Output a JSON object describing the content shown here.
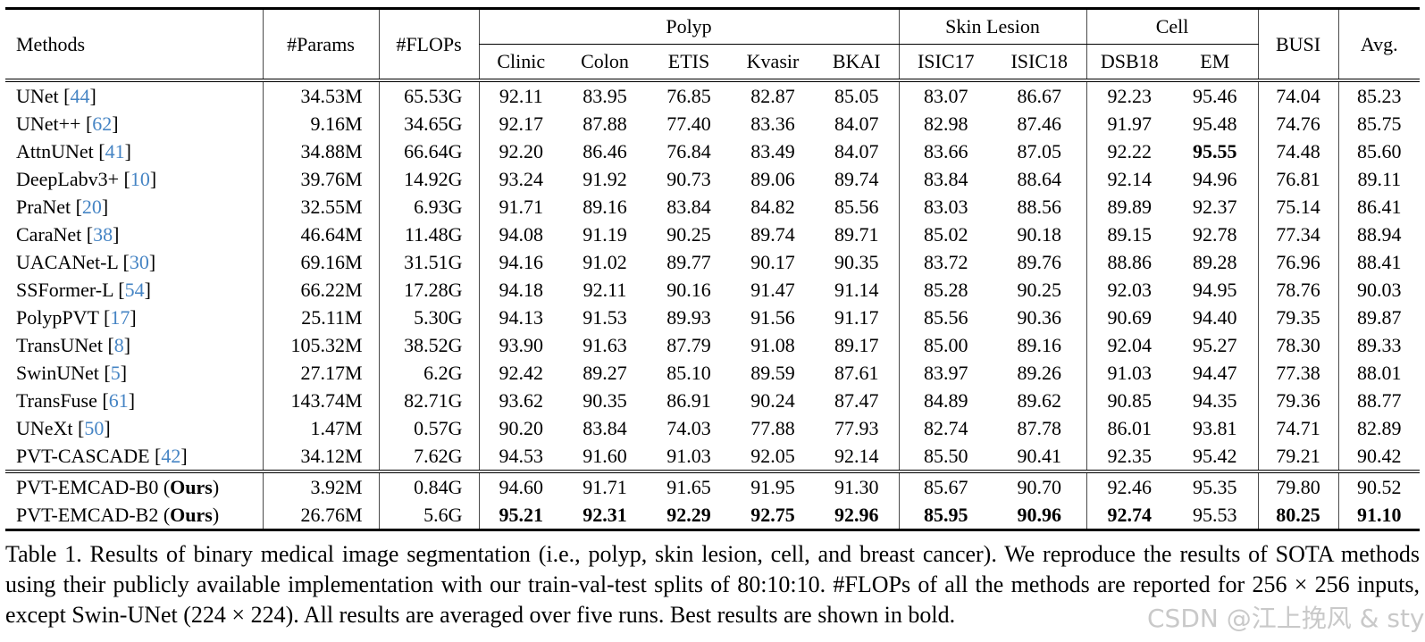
{
  "table": {
    "header": {
      "methods": "Methods",
      "params": "#Params",
      "flops": "#FLOPs",
      "groups": [
        {
          "label": "Polyp",
          "cols": [
            "Clinic",
            "Colon",
            "ETIS",
            "Kvasir",
            "BKAI"
          ]
        },
        {
          "label": "Skin Lesion",
          "cols": [
            "ISIC17",
            "ISIC18"
          ]
        },
        {
          "label": "Cell",
          "cols": [
            "DSB18",
            "EM"
          ]
        }
      ],
      "busi": "BUSI",
      "avg": "Avg."
    },
    "rows": [
      {
        "method": "UNet",
        "ref": "44",
        "params": "34.53M",
        "flops": "65.53G",
        "values": [
          "92.11",
          "83.95",
          "76.85",
          "82.87",
          "85.05",
          "83.07",
          "86.67",
          "92.23",
          "95.46",
          "74.04",
          "85.23"
        ],
        "bold": []
      },
      {
        "method": "UNet++",
        "ref": "62",
        "params": "9.16M",
        "flops": "34.65G",
        "values": [
          "92.17",
          "87.88",
          "77.40",
          "83.36",
          "84.07",
          "82.98",
          "87.46",
          "91.97",
          "95.48",
          "74.76",
          "85.75"
        ],
        "bold": []
      },
      {
        "method": "AttnUNet",
        "ref": "41",
        "params": "34.88M",
        "flops": "66.64G",
        "values": [
          "92.20",
          "86.46",
          "76.84",
          "83.49",
          "84.07",
          "83.66",
          "87.05",
          "92.22",
          "95.55",
          "74.48",
          "85.60"
        ],
        "bold": [
          8
        ]
      },
      {
        "method": "DeepLabv3+",
        "ref": "10",
        "params": "39.76M",
        "flops": "14.92G",
        "values": [
          "93.24",
          "91.92",
          "90.73",
          "89.06",
          "89.74",
          "83.84",
          "88.64",
          "92.14",
          "94.96",
          "76.81",
          "89.11"
        ],
        "bold": []
      },
      {
        "method": "PraNet",
        "ref": "20",
        "params": "32.55M",
        "flops": "6.93G",
        "values": [
          "91.71",
          "89.16",
          "83.84",
          "84.82",
          "85.56",
          "83.03",
          "88.56",
          "89.89",
          "92.37",
          "75.14",
          "86.41"
        ],
        "bold": []
      },
      {
        "method": "CaraNet",
        "ref": "38",
        "params": "46.64M",
        "flops": "11.48G",
        "values": [
          "94.08",
          "91.19",
          "90.25",
          "89.74",
          "89.71",
          "85.02",
          "90.18",
          "89.15",
          "92.78",
          "77.34",
          "88.94"
        ],
        "bold": []
      },
      {
        "method": "UACANet-L",
        "ref": "30",
        "params": "69.16M",
        "flops": "31.51G",
        "values": [
          "94.16",
          "91.02",
          "89.77",
          "90.17",
          "90.35",
          "83.72",
          "89.76",
          "88.86",
          "89.28",
          "76.96",
          "88.41"
        ],
        "bold": []
      },
      {
        "method": "SSFormer-L",
        "ref": "54",
        "params": "66.22M",
        "flops": "17.28G",
        "values": [
          "94.18",
          "92.11",
          "90.16",
          "91.47",
          "91.14",
          "85.28",
          "90.25",
          "92.03",
          "94.95",
          "78.76",
          "90.03"
        ],
        "bold": []
      },
      {
        "method": "PolypPVT",
        "ref": "17",
        "params": "25.11M",
        "flops": "5.30G",
        "values": [
          "94.13",
          "91.53",
          "89.93",
          "91.56",
          "91.17",
          "85.56",
          "90.36",
          "90.69",
          "94.40",
          "79.35",
          "89.87"
        ],
        "bold": []
      },
      {
        "method": "TransUNet",
        "ref": "8",
        "params": "105.32M",
        "flops": "38.52G",
        "values": [
          "93.90",
          "91.63",
          "87.79",
          "91.08",
          "89.17",
          "85.00",
          "89.16",
          "92.04",
          "95.27",
          "78.30",
          "89.33"
        ],
        "bold": []
      },
      {
        "method": "SwinUNet",
        "ref": "5",
        "params": "27.17M",
        "flops": "6.2G",
        "values": [
          "92.42",
          "89.27",
          "85.10",
          "89.59",
          "87.61",
          "83.97",
          "89.26",
          "91.03",
          "94.47",
          "77.38",
          "88.01"
        ],
        "bold": []
      },
      {
        "method": "TransFuse",
        "ref": "61",
        "params": "143.74M",
        "flops": "82.71G",
        "values": [
          "93.62",
          "90.35",
          "86.91",
          "90.24",
          "87.47",
          "84.89",
          "89.62",
          "90.85",
          "94.35",
          "79.36",
          "88.77"
        ],
        "bold": []
      },
      {
        "method": "UNeXt",
        "ref": "50",
        "params": "1.47M",
        "flops": "0.57G",
        "values": [
          "90.20",
          "83.84",
          "74.03",
          "77.88",
          "77.93",
          "82.74",
          "87.78",
          "86.01",
          "93.81",
          "74.71",
          "82.89"
        ],
        "bold": []
      },
      {
        "method": "PVT-CASCADE",
        "ref": "42",
        "params": "34.12M",
        "flops": "7.62G",
        "values": [
          "94.53",
          "91.60",
          "91.03",
          "92.05",
          "92.14",
          "85.50",
          "90.41",
          "92.35",
          "95.42",
          "79.21",
          "90.42"
        ],
        "bold": []
      }
    ],
    "ours_rows": [
      {
        "method": "PVT-EMCAD-B0",
        "ours_label": "Ours",
        "params": "3.92M",
        "flops": "0.84G",
        "values": [
          "94.60",
          "91.71",
          "91.65",
          "91.95",
          "91.30",
          "85.67",
          "90.70",
          "92.46",
          "95.35",
          "79.80",
          "90.52"
        ],
        "bold": []
      },
      {
        "method": "PVT-EMCAD-B2",
        "ours_label": "Ours",
        "params": "26.76M",
        "flops": "5.6G",
        "values": [
          "95.21",
          "92.31",
          "92.29",
          "92.75",
          "92.96",
          "85.95",
          "90.96",
          "92.74",
          "95.53",
          "80.25",
          "91.10"
        ],
        "bold": [
          0,
          1,
          2,
          3,
          4,
          5,
          6,
          7,
          9,
          10
        ]
      }
    ]
  },
  "caption": "Table 1. Results of binary medical image segmentation (i.e., polyp, skin lesion, cell, and breast cancer). We reproduce the results of SOTA methods using their publicly available implementation with our train-val-test splits of 80:10:10. #FLOPs of all the methods are reported for 256 × 256 inputs, except Swin-UNet (224 × 224). All results are averaged over five runs. Best results are shown in bold.",
  "watermark": "CSDN @江上挽风 & sty",
  "colors": {
    "citation_blue": "#4584c4",
    "watermark_gray": "#c9c9c9"
  }
}
